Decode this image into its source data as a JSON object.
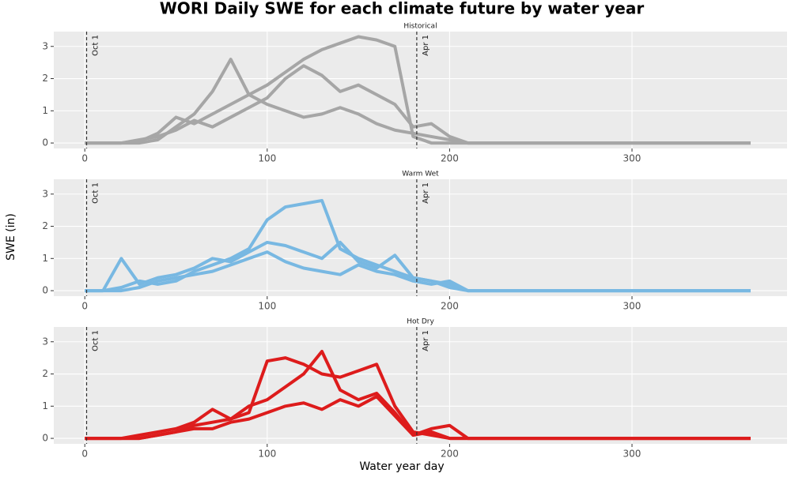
{
  "title": "WORI Daily SWE for each climate future by water year",
  "xlabel": "Water year day",
  "ylabel": "SWE (in)",
  "chart_data": [
    {
      "type": "line",
      "title": "Historical",
      "x": [
        0,
        10,
        20,
        30,
        40,
        50,
        60,
        70,
        80,
        90,
        100,
        110,
        120,
        130,
        140,
        150,
        160,
        170,
        180,
        190,
        200,
        210,
        220,
        230,
        240,
        250,
        260,
        270,
        280,
        290,
        300,
        310,
        320,
        330,
        340,
        350,
        360,
        365
      ],
      "series": [
        {
          "color": "#a6a6a6",
          "values": [
            0,
            0,
            0,
            0.05,
            0.3,
            0.8,
            0.6,
            0.9,
            1.2,
            1.5,
            1.8,
            2.2,
            2.6,
            2.9,
            3.1,
            3.3,
            3.2,
            3.0,
            0.2,
            0,
            0,
            0,
            0,
            0,
            0,
            0,
            0,
            0,
            0,
            0,
            0,
            0,
            0,
            0,
            0,
            0,
            0,
            0
          ]
        },
        {
          "color": "#a6a6a6",
          "values": [
            0,
            0,
            0,
            0,
            0.1,
            0.5,
            0.9,
            1.6,
            2.6,
            1.5,
            1.2,
            1.0,
            0.8,
            0.9,
            1.1,
            0.9,
            0.6,
            0.4,
            0.3,
            0.2,
            0.1,
            0,
            0,
            0,
            0,
            0,
            0,
            0,
            0,
            0,
            0,
            0,
            0,
            0,
            0,
            0,
            0,
            0
          ]
        },
        {
          "color": "#a6a6a6",
          "values": [
            0,
            0,
            0,
            0.1,
            0.2,
            0.4,
            0.7,
            0.5,
            0.8,
            1.1,
            1.4,
            2.0,
            2.4,
            2.1,
            1.6,
            1.8,
            1.5,
            1.2,
            0.5,
            0.6,
            0.2,
            0,
            0,
            0,
            0,
            0,
            0,
            0,
            0,
            0,
            0,
            0,
            0,
            0,
            0,
            0,
            0,
            0
          ]
        }
      ],
      "xlim": [
        -17,
        385
      ],
      "ylim": [
        -0.17,
        3.46
      ],
      "xticks": [
        0,
        100,
        200,
        300
      ],
      "yticks": [
        0,
        1,
        2,
        3
      ],
      "grid": true,
      "annotations": [
        {
          "x": 1,
          "label": "Oct 1"
        },
        {
          "x": 182,
          "label": "Apr 1"
        }
      ]
    },
    {
      "type": "line",
      "title": "Warm Wet",
      "x": [
        0,
        10,
        20,
        30,
        40,
        50,
        60,
        70,
        80,
        90,
        100,
        110,
        120,
        130,
        140,
        150,
        160,
        170,
        180,
        190,
        200,
        210,
        220,
        230,
        240,
        250,
        260,
        270,
        280,
        290,
        300,
        310,
        320,
        330,
        340,
        350,
        360,
        365
      ],
      "series": [
        {
          "color": "#78b8e2",
          "values": [
            0,
            0,
            0.1,
            0.3,
            0.2,
            0.3,
            0.6,
            0.8,
            1.0,
            1.3,
            2.2,
            2.6,
            2.7,
            2.8,
            1.3,
            1.0,
            0.8,
            0.6,
            0.4,
            0.3,
            0.2,
            0,
            0,
            0,
            0,
            0,
            0,
            0,
            0,
            0,
            0,
            0,
            0,
            0,
            0,
            0,
            0,
            0
          ]
        },
        {
          "color": "#78b8e2",
          "values": [
            0,
            0,
            1.0,
            0.2,
            0.4,
            0.5,
            0.7,
            1.0,
            0.9,
            1.2,
            1.5,
            1.4,
            1.2,
            1.0,
            1.5,
            0.9,
            0.7,
            1.1,
            0.4,
            0.3,
            0.1,
            0,
            0,
            0,
            0,
            0,
            0,
            0,
            0,
            0,
            0,
            0,
            0,
            0,
            0,
            0,
            0,
            0
          ]
        },
        {
          "color": "#78b8e2",
          "values": [
            0,
            0,
            0,
            0.1,
            0.3,
            0.4,
            0.5,
            0.6,
            0.8,
            1.0,
            1.2,
            0.9,
            0.7,
            0.6,
            0.5,
            0.8,
            0.6,
            0.5,
            0.3,
            0.2,
            0.3,
            0,
            0,
            0,
            0,
            0,
            0,
            0,
            0,
            0,
            0,
            0,
            0,
            0,
            0,
            0,
            0,
            0
          ]
        }
      ],
      "xlim": [
        -17,
        385
      ],
      "ylim": [
        -0.17,
        3.46
      ],
      "xticks": [
        0,
        100,
        200,
        300
      ],
      "yticks": [
        0,
        1,
        2,
        3
      ],
      "grid": true,
      "annotations": [
        {
          "x": 1,
          "label": "Oct 1"
        },
        {
          "x": 182,
          "label": "Apr 1"
        }
      ]
    },
    {
      "type": "line",
      "title": "Hot Dry",
      "x": [
        0,
        10,
        20,
        30,
        40,
        50,
        60,
        70,
        80,
        90,
        100,
        110,
        120,
        130,
        140,
        150,
        160,
        170,
        180,
        190,
        200,
        210,
        220,
        230,
        240,
        250,
        260,
        270,
        280,
        290,
        300,
        310,
        320,
        330,
        340,
        350,
        360,
        365
      ],
      "series": [
        {
          "color": "#dd1c1c",
          "values": [
            0,
            0,
            0,
            0,
            0.1,
            0.2,
            0.4,
            0.5,
            0.6,
            0.8,
            2.4,
            2.5,
            2.3,
            2.0,
            1.9,
            2.1,
            2.3,
            1.0,
            0.2,
            0.1,
            0,
            0,
            0,
            0,
            0,
            0,
            0,
            0,
            0,
            0,
            0,
            0,
            0,
            0,
            0,
            0,
            0,
            0
          ]
        },
        {
          "color": "#dd1c1c",
          "values": [
            0,
            0,
            0,
            0.1,
            0.2,
            0.3,
            0.5,
            0.9,
            0.6,
            1.0,
            1.2,
            1.6,
            2.0,
            2.7,
            1.5,
            1.2,
            1.4,
            0.8,
            0.1,
            0.2,
            0,
            0,
            0,
            0,
            0,
            0,
            0,
            0,
            0,
            0,
            0,
            0,
            0,
            0,
            0,
            0,
            0,
            0
          ]
        },
        {
          "color": "#dd1c1c",
          "values": [
            0,
            0,
            0,
            0,
            0.1,
            0.2,
            0.3,
            0.3,
            0.5,
            0.6,
            0.8,
            1.0,
            1.1,
            0.9,
            1.2,
            1.0,
            1.3,
            0.7,
            0.1,
            0.3,
            0.4,
            0,
            0,
            0,
            0,
            0,
            0,
            0,
            0,
            0,
            0,
            0,
            0,
            0,
            0,
            0,
            0,
            0
          ]
        }
      ],
      "xlim": [
        -17,
        385
      ],
      "ylim": [
        -0.17,
        3.46
      ],
      "xticks": [
        0,
        100,
        200,
        300
      ],
      "yticks": [
        0,
        1,
        2,
        3
      ],
      "grid": true,
      "annotations": [
        {
          "x": 1,
          "label": "Oct 1"
        },
        {
          "x": 182,
          "label": "Apr 1"
        }
      ]
    }
  ]
}
